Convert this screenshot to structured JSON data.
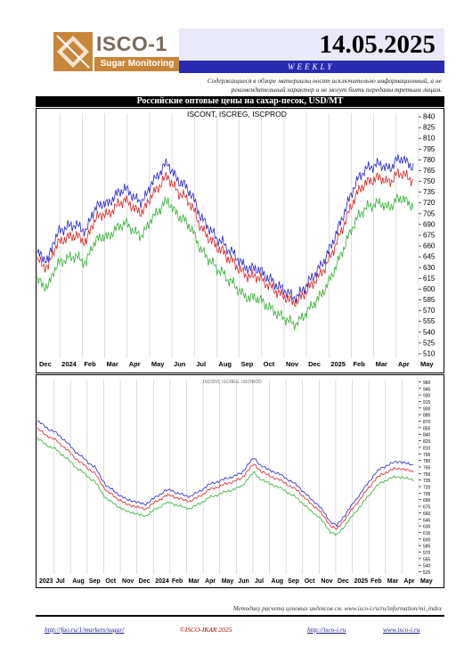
{
  "header": {
    "brand_name": "ISCO-1",
    "brand_sub": "Sugar Monitoring",
    "date": "14.05.2025",
    "period": "WEEKLY",
    "disclaimer": "Содержащиеся в обзоре материалы носят исключительно информационный, а не рекомендательный характер и не могут быть переданы третьим лицам."
  },
  "chart_data": [
    {
      "type": "line",
      "title": "Российские оптовые цены на сахар-песок, USD/MT",
      "legend": "ISCONT, ISCREG, ISCPROD",
      "colors": [
        "#2323d0",
        "#e02020",
        "#33b033"
      ],
      "x_ticks": [
        "Dec",
        "2024",
        "Feb",
        "Mar",
        "Apr",
        "May",
        "Jun",
        "Jul",
        "Aug",
        "Sep",
        "Oct",
        "Nov",
        "Dec",
        "2025",
        "Feb",
        "Mar",
        "Apr",
        "May"
      ],
      "y_ticks": [
        840,
        825,
        810,
        795,
        780,
        765,
        750,
        735,
        720,
        705,
        690,
        675,
        660,
        645,
        630,
        615,
        600,
        585,
        570,
        555,
        540,
        525,
        510
      ],
      "ylim": [
        505,
        845
      ],
      "series": [
        {
          "name": "ISCONT",
          "values": [
            650,
            644,
            640,
            668,
            680,
            685,
            688,
            690,
            685,
            680,
            705,
            715,
            720,
            718,
            728,
            735,
            740,
            735,
            725,
            722,
            730,
            750,
            755,
            770,
            775,
            760,
            750,
            745,
            735,
            720,
            700,
            690,
            680,
            670,
            665,
            655,
            650,
            640,
            632,
            628,
            630,
            625,
            618,
            612,
            605,
            600,
            595,
            588,
            592,
            602,
            612,
            622,
            632,
            645,
            662,
            680,
            700,
            720,
            740,
            755,
            765,
            770,
            772,
            775,
            768,
            770,
            780,
            782,
            775,
            770
          ]
        },
        {
          "name": "ISCREG",
          "values": [
            640,
            634,
            630,
            655,
            665,
            670,
            673,
            675,
            670,
            665,
            690,
            700,
            705,
            703,
            712,
            719,
            724,
            719,
            710,
            707,
            715,
            733,
            738,
            752,
            757,
            743,
            734,
            729,
            720,
            705,
            686,
            676,
            667,
            658,
            653,
            643,
            638,
            628,
            621,
            617,
            619,
            614,
            608,
            602,
            596,
            591,
            587,
            581,
            585,
            594,
            603,
            612,
            621,
            633,
            649,
            666,
            685,
            704,
            723,
            737,
            746,
            751,
            753,
            756,
            749,
            751,
            760,
            762,
            755,
            751
          ]
        },
        {
          "name": "ISCPROD",
          "values": [
            612,
            606,
            603,
            626,
            636,
            641,
            644,
            646,
            641,
            636,
            660,
            669,
            674,
            672,
            681,
            687,
            692,
            687,
            678,
            675,
            683,
            700,
            705,
            718,
            723,
            710,
            701,
            696,
            687,
            673,
            655,
            646,
            637,
            628,
            623,
            613,
            608,
            598,
            591,
            587,
            589,
            584,
            578,
            572,
            566,
            561,
            557,
            551,
            555,
            564,
            573,
            582,
            591,
            603,
            618,
            635,
            653,
            671,
            689,
            702,
            711,
            716,
            718,
            721,
            714,
            716,
            725,
            727,
            720,
            716
          ]
        }
      ]
    },
    {
      "type": "line",
      "title": "",
      "legend": "ISCONT, ISCREG, ISCPROD",
      "colors": [
        "#2323d0",
        "#e02020",
        "#33b033"
      ],
      "x_ticks": [
        "2023",
        "Jul",
        "Aug",
        "Sep",
        "Oct",
        "Nov",
        "Dec",
        "2024",
        "Feb",
        "Mar",
        "Apr",
        "May",
        "Jun",
        "Jul",
        "Aug",
        "Sep",
        "Oct",
        "Nov",
        "Dec",
        "2025",
        "Feb",
        "Mar",
        "Apr",
        "May"
      ],
      "y_ticks": [
        960,
        945,
        930,
        915,
        900,
        885,
        870,
        855,
        840,
        825,
        810,
        795,
        780,
        765,
        750,
        735,
        720,
        705,
        690,
        675,
        660,
        645,
        630,
        615,
        600,
        585,
        570,
        555,
        540,
        525
      ],
      "ylim": [
        520,
        965
      ],
      "series": [
        {
          "name": "ISCONT",
          "values": [
            870,
            860,
            850,
            842,
            830,
            815,
            800,
            788,
            775,
            765,
            740,
            720,
            710,
            700,
            690,
            688,
            682,
            680,
            690,
            700,
            710,
            712,
            705,
            700,
            698,
            705,
            715,
            725,
            730,
            735,
            740,
            745,
            750,
            770,
            785,
            770,
            760,
            755,
            748,
            740,
            730,
            720,
            705,
            690,
            680,
            660,
            640,
            630,
            650,
            670,
            690,
            710,
            730,
            750,
            762,
            770,
            775,
            778,
            772,
            770
          ]
        },
        {
          "name": "ISCREG",
          "values": [
            852,
            842,
            833,
            825,
            813,
            799,
            785,
            773,
            761,
            751,
            727,
            708,
            698,
            689,
            679,
            677,
            671,
            669,
            679,
            689,
            698,
            700,
            694,
            689,
            687,
            694,
            703,
            713,
            718,
            723,
            728,
            733,
            738,
            757,
            771,
            757,
            747,
            742,
            735,
            728,
            718,
            709,
            694,
            679,
            670,
            650,
            631,
            622,
            641,
            660,
            679,
            698,
            717,
            736,
            747,
            755,
            760,
            762,
            757,
            755
          ]
        },
        {
          "name": "ISCPROD",
          "values": [
            830,
            820,
            811,
            804,
            792,
            779,
            765,
            754,
            742,
            732,
            709,
            690,
            681,
            672,
            663,
            661,
            655,
            653,
            663,
            672,
            681,
            683,
            677,
            672,
            670,
            677,
            686,
            695,
            700,
            705,
            710,
            715,
            720,
            738,
            752,
            738,
            729,
            724,
            717,
            710,
            700,
            691,
            677,
            663,
            654,
            635,
            617,
            608,
            626,
            644,
            663,
            681,
            699,
            718,
            729,
            737,
            741,
            743,
            738,
            736
          ]
        }
      ]
    }
  ],
  "footer": {
    "note": "Методику расчета ценовых индексов см. www.isco-i.ru/ru/information/mi_index",
    "link1": "http://fao.ru/1/markets/sugar/",
    "copyright": "©ISCO-IKAR 2025",
    "link2": "http://isco-i.ru",
    "link3": "www.isco-i.ru"
  }
}
